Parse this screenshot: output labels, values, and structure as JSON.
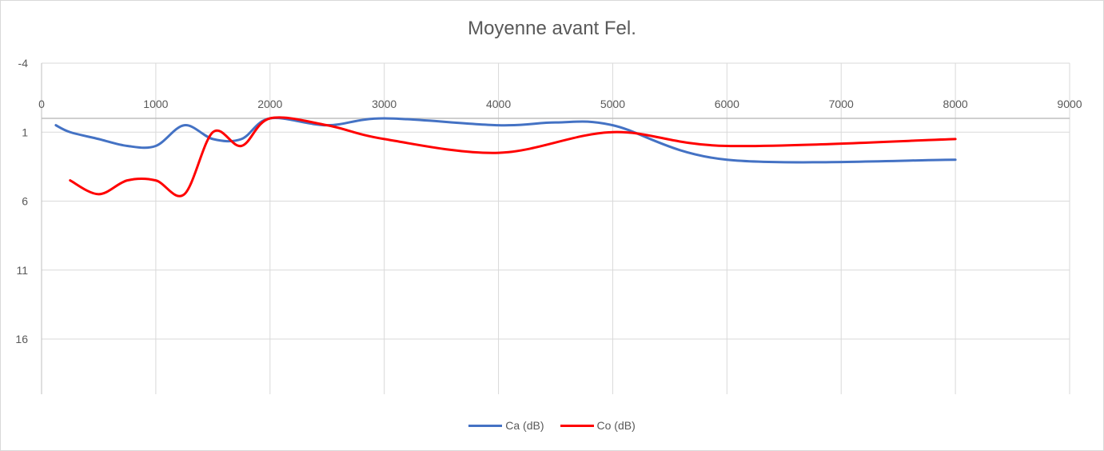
{
  "chart_data": {
    "type": "line",
    "title": "Moyenne avant Fel.",
    "xlabel": "",
    "ylabel": "",
    "xlim": [
      0,
      9000
    ],
    "ylim": [
      -4,
      20
    ],
    "y_reversed": true,
    "x_axis_position": "top",
    "x_ticks": [
      0,
      1000,
      2000,
      3000,
      4000,
      5000,
      6000,
      7000,
      8000,
      9000
    ],
    "x_tick_labels": [
      "0",
      "1000",
      "2000",
      "3000",
      "4000",
      "5000",
      "6000",
      "7000",
      "8000",
      "9000"
    ],
    "y_ticks": [
      -4,
      1,
      6,
      11,
      16
    ],
    "y_tick_labels": [
      "-4",
      "1",
      "6",
      "11",
      "16"
    ],
    "reference_line_y": 0,
    "grid": true,
    "legend_position": "bottom",
    "series": [
      {
        "name": "Ca (dB)",
        "color": "#4472c4",
        "x": [
          125,
          250,
          500,
          750,
          1000,
          1250,
          1500,
          1750,
          2000,
          2500,
          3000,
          4000,
          4500,
          5000,
          6000,
          8000
        ],
        "y": [
          0.5,
          1.0,
          1.5,
          2.0,
          2.0,
          0.5,
          1.5,
          1.5,
          0.0,
          0.5,
          0.0,
          0.5,
          0.3,
          0.5,
          3.0,
          3.0
        ]
      },
      {
        "name": "Co (dB)",
        "color": "#ff0000",
        "x": [
          250,
          500,
          750,
          1000,
          1250,
          1500,
          1750,
          2000,
          2500,
          3000,
          4000,
          5000,
          6000,
          8000
        ],
        "y": [
          4.5,
          5.5,
          4.5,
          4.5,
          5.5,
          1.0,
          2.0,
          0.0,
          0.5,
          1.5,
          2.5,
          1.0,
          2.0,
          1.5
        ]
      }
    ]
  }
}
